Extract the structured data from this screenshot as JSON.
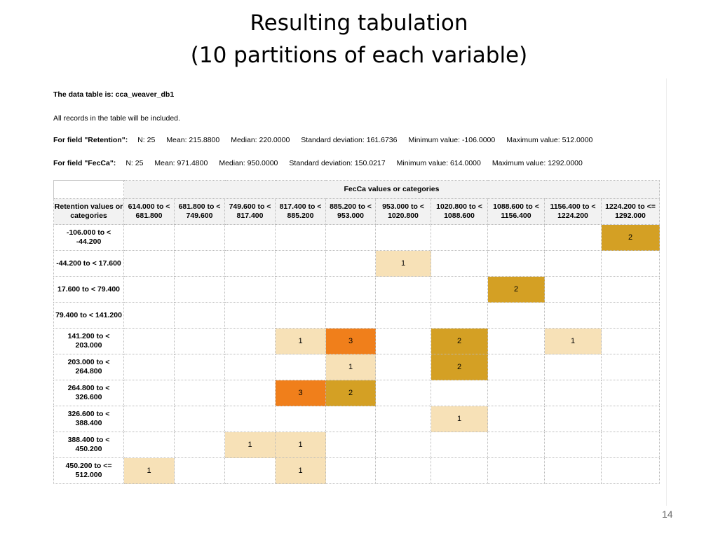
{
  "title": {
    "line1": "Resulting tabulation",
    "line2": "(10 partitions of each variable)"
  },
  "data_table_line": "The data table is: cca_weaver_db1",
  "records_line": "All records in the table will be included.",
  "field_retention": {
    "label": "For field \"Retention\":",
    "n": "N: 25",
    "mean": "Mean: 215.8800",
    "median": "Median: 220.0000",
    "sd": "Standard deviation: 161.6736",
    "min": "Minimum value: -106.0000",
    "max": "Maximum value: 512.0000"
  },
  "field_fecca": {
    "label": "For field \"FecCa\":",
    "n": "N: 25",
    "mean": "Mean: 971.4800",
    "median": "Median: 950.0000",
    "sd": "Standard deviation: 150.0217",
    "min": "Minimum value: 614.0000",
    "max": "Maximum value: 1292.0000"
  },
  "table": {
    "group_header": "FecCa values or categories",
    "row_header": "Retention values or categories",
    "columns": [
      "614.000 to < 681.800",
      "681.800 to < 749.600",
      "749.600 to < 817.400",
      "817.400 to < 885.200",
      "885.200 to < 953.000",
      "953.000 to < 1020.800",
      "1020.800 to < 1088.600",
      "1088.600 to < 1156.400",
      "1156.400 to < 1224.200",
      "1224.200 to <= 1292.000"
    ],
    "rows": [
      {
        "label": "-106.000 to < -44.200",
        "cells": [
          "",
          "",
          "",
          "",
          "",
          "",
          "",
          "",
          "",
          "2"
        ]
      },
      {
        "label": "-44.200 to < 17.600",
        "cells": [
          "",
          "",
          "",
          "",
          "",
          "1",
          "",
          "",
          "",
          ""
        ]
      },
      {
        "label": "17.600 to < 79.400",
        "cells": [
          "",
          "",
          "",
          "",
          "",
          "",
          "",
          "2",
          "",
          ""
        ]
      },
      {
        "label": "79.400 to < 141.200",
        "cells": [
          "",
          "",
          "",
          "",
          "",
          "",
          "",
          "",
          "",
          ""
        ]
      },
      {
        "label": "141.200 to < 203.000",
        "cells": [
          "",
          "",
          "",
          "1",
          "3",
          "",
          "2",
          "",
          "1",
          ""
        ]
      },
      {
        "label": "203.000 to < 264.800",
        "cells": [
          "",
          "",
          "",
          "",
          "1",
          "",
          "2",
          "",
          "",
          ""
        ]
      },
      {
        "label": "264.800 to < 326.600",
        "cells": [
          "",
          "",
          "",
          "3",
          "2",
          "",
          "",
          "",
          "",
          ""
        ]
      },
      {
        "label": "326.600 to < 388.400",
        "cells": [
          "",
          "",
          "",
          "",
          "",
          "",
          "1",
          "",
          "",
          ""
        ]
      },
      {
        "label": "388.400 to < 450.200",
        "cells": [
          "",
          "",
          "1",
          "1",
          "",
          "",
          "",
          "",
          "",
          ""
        ]
      },
      {
        "label": "450.200 to <= 512.000",
        "cells": [
          "1",
          "",
          "",
          "1",
          "",
          "",
          "",
          "",
          "",
          ""
        ]
      }
    ],
    "count_colors": {
      "1": "#f7e1b7",
      "2": "#d4a024",
      "3": "#f07f1b"
    }
  },
  "page_number": "14"
}
